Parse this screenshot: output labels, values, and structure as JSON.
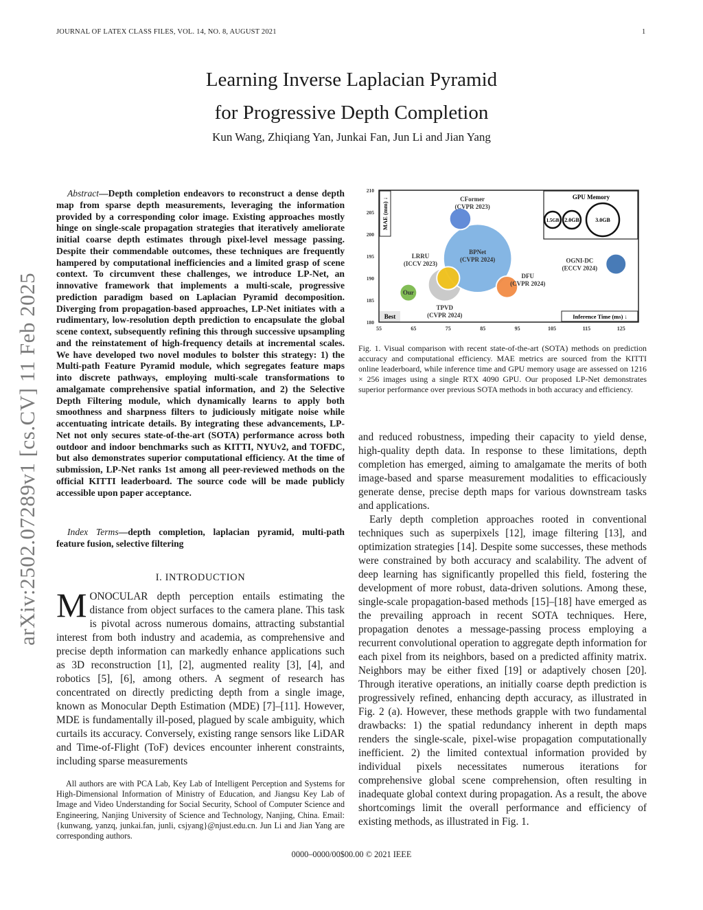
{
  "header": {
    "journal": "JOURNAL OF LATEX CLASS FILES, VOL. 14, NO. 8, AUGUST 2021",
    "page_number": "1"
  },
  "arxiv_stamp": "arXiv:2502.07289v1 [cs.CV] 11 Feb 2025",
  "title_line1": "Learning Inverse Laplacian Pyramid",
  "title_line2": "for Progressive Depth Completion",
  "authors": "Kun Wang, Zhiqiang Yan, Junkai Fan, Jun Li and Jian Yang",
  "abstract": {
    "label": "Abstract",
    "text": "—Depth completion endeavors to reconstruct a dense depth map from sparse depth measurements, leveraging the information provided by a corresponding color image. Existing approaches mostly hinge on single-scale propagation strategies that iteratively ameliorate initial coarse depth estimates through pixel-level message passing. Despite their commendable outcomes, these techniques are frequently hampered by computational inefficiencies and a limited grasp of scene context. To circumvent these challenges, we introduce LP-Net, an innovative framework that implements a multi-scale, progressive prediction paradigm based on Laplacian Pyramid decomposition. Diverging from propagation-based approaches, LP-Net initiates with a rudimentary, low-resolution depth prediction to encapsulate the global scene context, subsequently refining this through successive upsampling and the reinstatement of high-frequency details at incremental scales. We have developed two novel modules to bolster this strategy: 1) the Multi-path Feature Pyramid module, which segregates feature maps into discrete pathways, employing multi-scale transformations to amalgamate comprehensive spatial information, and 2) the Selective Depth Filtering module, which dynamically learns to apply both smoothness and sharpness filters to judiciously mitigate noise while accentuating intricate details. By integrating these advancements, LP-Net not only secures state-of-the-art (SOTA) performance across both outdoor and indoor benchmarks such as KITTI, NYUv2, and TOFDC, but also demonstrates superior computational efficiency. At the time of submission, LP-Net ranks 1st among all peer-reviewed methods on the official KITTI leaderboard. The source code will be made publicly accessible upon paper acceptance."
  },
  "index_terms": {
    "label": "Index Terms",
    "text": "—depth completion, laplacian pyramid, multi-path feature fusion, selective filtering"
  },
  "section_heading": "I. INTRODUCTION",
  "intro": {
    "dropcap": "M",
    "text": "ONOCULAR depth perception entails estimating the distance from object surfaces to the camera plane. This task is pivotal across numerous domains, attracting substantial interest from both industry and academia, as comprehensive and precise depth information can markedly enhance applications such as 3D reconstruction [1], [2], augmented reality [3], [4], and robotics [5], [6], among others. A segment of research has concentrated on directly predicting depth from a single image, known as Monocular Depth Estimation (MDE) [7]–[11]. However, MDE is fundamentally ill-posed, plagued by scale ambiguity, which curtails its accuracy. Conversely, existing range sensors like LiDAR and Time-of-Flight (ToF) devices encounter inherent constraints, including sparse measurements"
  },
  "footnote": "All authors are with PCA Lab, Key Lab of Intelligent Perception and Systems for High-Dimensional Information of Ministry of Education, and Jiangsu Key Lab of Image and Video Understanding for Social Security, School of Computer Science and Engineering, Nanjing University of Science and Technology, Nanjing, China. Email: {kunwang, yanzq, junkai.fan, junli, csjyang}@njust.edu.cn. Jun Li and Jian Yang are corresponding authors.",
  "figure_caption": "Fig. 1.   Visual comparison with recent state-of-the-art (SOTA) methods on prediction accuracy and computational efficiency. MAE metrics are sourced from the KITTI online leaderboard, while inference time and GPU memory usage are assessed on 1216 × 256 images using a single RTX 4090 GPU. Our proposed LP-Net demonstrates superior performance over previous SOTA methods in both accuracy and efficiency.",
  "right_col": {
    "p1": "and reduced robustness, impeding their capacity to yield dense, high-quality depth data. In response to these limitations, depth completion has emerged, aiming to amalgamate the merits of both image-based and sparse measurement modalities to efficaciously generate dense, precise depth maps for various downstream tasks and applications.",
    "p2": "Early depth completion approaches rooted in conventional techniques such as superpixels [12], image filtering [13], and optimization strategies [14]. Despite some successes, these methods were constrained by both accuracy and scalability. The advent of deep learning has significantly propelled this field, fostering the development of more robust, data-driven solutions. Among these, single-scale propagation-based methods [15]–[18] have emerged as the prevailing approach in recent SOTA techniques. Here, propagation denotes a message-passing process employing a recurrent convolutional operation to aggregate depth information for each pixel from its neighbors, based on a predicted affinity matrix. Neighbors may be either fixed [19] or adaptively chosen [20]. Through iterative operations, an initially coarse depth prediction is progressively refined, enhancing depth accuracy, as illustrated in Fig. 2 (a). However, these methods grapple with two fundamental drawbacks: 1) the spatial redundancy inherent in depth maps renders the single-scale, pixel-wise propagation computationally inefficient. 2) the limited contextual information provided by individual pixels necessitates numerous iterations for comprehensive global scene comprehension, often resulting in inadequate global context during propagation. As a result, the above shortcomings limit the overall performance and efficiency of existing methods, as illustrated in Fig. 1."
  },
  "footer": "0000–0000/00$00.00 © 2021 IEEE",
  "chart_data": {
    "type": "scatter",
    "xlabel": "Inference Time (ms) ↓",
    "ylabel": "MAE (mm) ↓",
    "xlim": [
      55,
      130
    ],
    "ylim": [
      180,
      210
    ],
    "xticks": [
      "55",
      "65",
      "75",
      "85",
      "95",
      "105",
      "115",
      "125"
    ],
    "yticks": [
      "180",
      "185",
      "190",
      "195",
      "200",
      "205",
      "210"
    ],
    "corner_label": "Best",
    "size_legend": {
      "title": "GPU Memory",
      "entries": [
        {
          "label": "1.5GB",
          "value": 1.5
        },
        {
          "label": "2.0GB",
          "value": 2.0
        },
        {
          "label": "3.0GB",
          "value": 3.0
        }
      ]
    },
    "points": [
      {
        "name": "TPVD",
        "venue": "(CVPR 2024)",
        "x": 74,
        "y": 188.5,
        "gpu_gb": 2.9,
        "color": "#c8c8c8"
      },
      {
        "name": "BPNet",
        "venue": "(CVPR 2024)",
        "x": 83.5,
        "y": 194.5,
        "gpu_gb": 6.0,
        "color": "#7fb3e3"
      },
      {
        "name": "CFormer",
        "venue": "(CVPR 2023)",
        "x": 78.5,
        "y": 203.5,
        "gpu_gb": 1.9,
        "color": "#5b86d6"
      },
      {
        "name": "LRRU",
        "venue": "(ICCV 2023)",
        "x": 75,
        "y": 190,
        "gpu_gb": 2.0,
        "color": "#f2c21b"
      },
      {
        "name": "DFU",
        "venue": "(CVPR 2024)",
        "x": 92,
        "y": 188,
        "gpu_gb": 1.9,
        "color": "#f28c45"
      },
      {
        "name": "OGNI-DC",
        "venue": "(ECCV 2024)",
        "x": 123.5,
        "y": 193.2,
        "gpu_gb": 1.8,
        "color": "#3f74b4"
      },
      {
        "name": "Our",
        "venue": "",
        "x": 63.5,
        "y": 186.7,
        "gpu_gb": 1.5,
        "color": "#7cba4e"
      }
    ]
  }
}
